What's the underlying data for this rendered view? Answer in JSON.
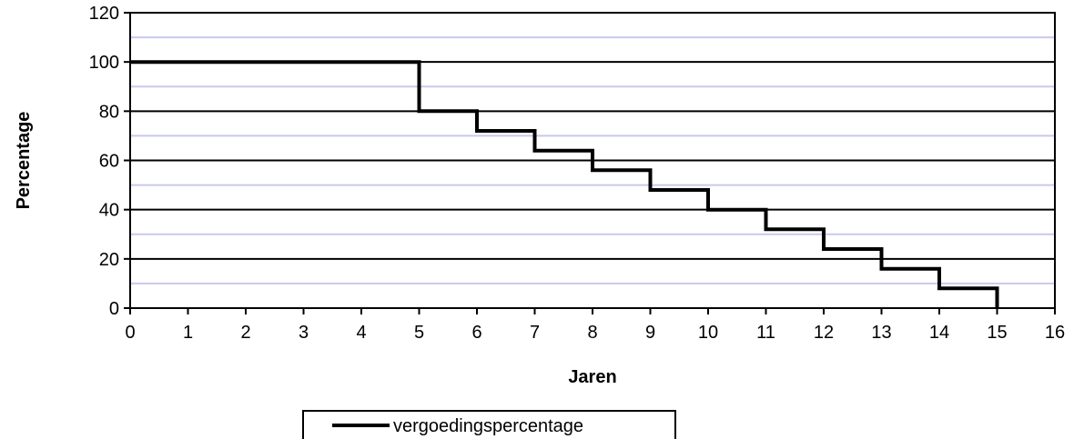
{
  "chart_data": {
    "type": "line",
    "title": "",
    "xlabel": "Jaren",
    "ylabel": "Percentage",
    "xlim": [
      0,
      16
    ],
    "ylim": [
      0,
      120
    ],
    "x_ticks": [
      0,
      1,
      2,
      3,
      4,
      5,
      6,
      7,
      8,
      9,
      10,
      11,
      12,
      13,
      14,
      15,
      16
    ],
    "y_ticks": [
      0,
      20,
      40,
      60,
      80,
      100,
      120
    ],
    "x_tick_labels": [
      "0",
      "1",
      "2",
      "3",
      "4",
      "5",
      "6",
      "7",
      "8",
      "9",
      "10",
      "11",
      "12",
      "13",
      "14",
      "15",
      "16"
    ],
    "y_tick_labels": [
      "0",
      "20",
      "40",
      "60",
      "80",
      "100",
      "120"
    ],
    "grid": true,
    "step": true,
    "legend_position": "bottom",
    "colors": {
      "line": "#000000",
      "major_grid": "#000000",
      "minor_grid": "#c8c8f0"
    },
    "series": [
      {
        "name": "vergoedingspercentage",
        "x": [
          0,
          5,
          5,
          6,
          6,
          7,
          7,
          8,
          8,
          9,
          9,
          10,
          10,
          11,
          11,
          12,
          12,
          13,
          13,
          14,
          14,
          15,
          15
        ],
        "y": [
          100,
          100,
          80,
          80,
          72,
          72,
          64,
          64,
          56,
          56,
          48,
          48,
          40,
          40,
          32,
          32,
          24,
          24,
          16,
          16,
          8,
          8,
          0
        ]
      }
    ]
  }
}
